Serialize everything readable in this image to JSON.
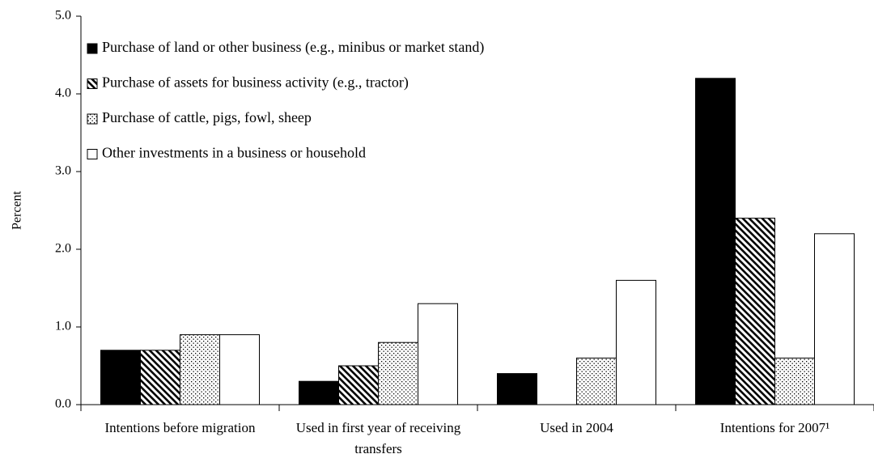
{
  "chart_data": {
    "type": "bar",
    "y_label": "Percent",
    "categories": [
      "Intentions before migration",
      "Used in first year of receiving transfers",
      "Used in 2004",
      "Intentions for 2007¹"
    ],
    "series": [
      {
        "name": "Purchase of land or other business (e.g., minibus or market stand)",
        "color": "#000000",
        "pattern": "solid",
        "values": [
          0.7,
          0.3,
          0.4,
          4.2
        ]
      },
      {
        "name": "Purchase of assets for business activity (e.g., tractor)",
        "color": "#000000",
        "pattern": "hatch",
        "values": [
          0.7,
          0.5,
          0,
          2.4
        ]
      },
      {
        "name": "Purchase of cattle, pigs, fowl, sheep",
        "color": "#000000",
        "pattern": "dots",
        "values": [
          0.9,
          0.8,
          0.6,
          0.6
        ]
      },
      {
        "name": "Other investments in a business or household",
        "color": "#ffffff",
        "pattern": "solid",
        "values": [
          0.9,
          1.3,
          1.6,
          2.2
        ]
      }
    ],
    "ylim": [
      0,
      5
    ],
    "yticks": [
      {
        "value": 0,
        "label": "0.0"
      },
      {
        "value": 1,
        "label": "1.0"
      },
      {
        "value": 2,
        "label": "2.0"
      },
      {
        "value": 3,
        "label": "3.0"
      },
      {
        "value": 4,
        "label": "4.0"
      },
      {
        "value": 5,
        "label": "5.0"
      }
    ],
    "legend": "top-left",
    "grid": false
  }
}
